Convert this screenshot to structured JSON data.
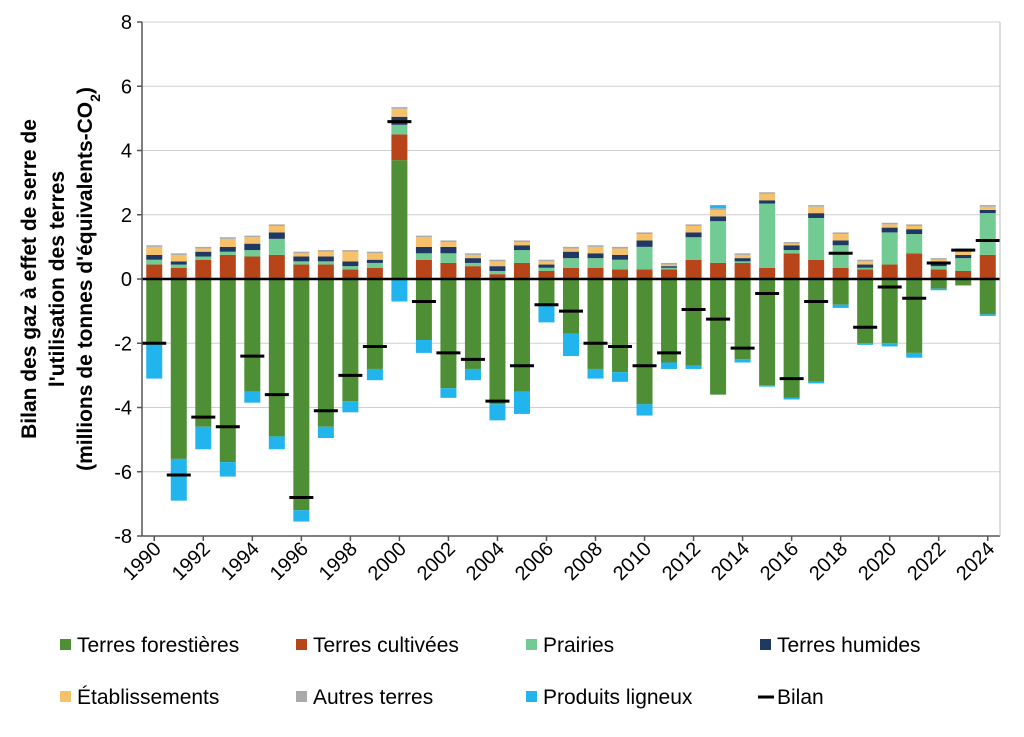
{
  "chart_data": {
    "type": "bar",
    "stacked": true,
    "ylabel_lines": [
      "Bilan des gaz à effet de serre de",
      "l'utilisation des terres",
      "(millions de tonnes d'équivalents-CO",
      "2",
      ")"
    ],
    "ylim": [
      -8,
      8
    ],
    "yticks": [
      -8,
      -6,
      -4,
      -2,
      0,
      2,
      4,
      6,
      8
    ],
    "years": [
      1990,
      1991,
      1992,
      1993,
      1994,
      1995,
      1996,
      1997,
      1998,
      1999,
      2000,
      2001,
      2002,
      2003,
      2004,
      2005,
      2006,
      2007,
      2008,
      2009,
      2010,
      2011,
      2012,
      2013,
      2014,
      2015,
      2016,
      2017,
      2018,
      2019,
      2020,
      2021,
      2022,
      2023,
      2024
    ],
    "x_tick_labels": [
      "1990",
      "1992",
      "1994",
      "1996",
      "1998",
      "2000",
      "2002",
      "2004",
      "2006",
      "2008",
      "2010",
      "2012",
      "2014",
      "2016",
      "2018",
      "2020",
      "2022",
      "2024"
    ],
    "colors": {
      "forest": "#4e8f35",
      "crop": "#b8451a",
      "grass": "#71cb92",
      "wet": "#1f3864",
      "settle": "#f7c16a",
      "other": "#aaaaaa",
      "wood": "#22b4ec",
      "bilan": "#000000",
      "grid": "#d0d0d0"
    },
    "series": [
      {
        "key": "forest",
        "name": "Terres forestières",
        "values": [
          -2.0,
          -5.6,
          -4.6,
          -5.7,
          -3.5,
          -4.9,
          -7.2,
          -4.6,
          -3.8,
          -2.8,
          3.7,
          -1.9,
          -3.4,
          -2.8,
          -3.9,
          -3.5,
          -0.8,
          -1.7,
          -2.8,
          -2.9,
          -3.9,
          -2.6,
          -2.7,
          -3.6,
          -2.5,
          -3.3,
          -3.7,
          -3.2,
          -0.8,
          -2.0,
          -2.0,
          -2.3,
          -0.3,
          -0.2,
          -1.1
        ]
      },
      {
        "key": "crop",
        "name": "Terres cultivées",
        "values": [
          0.45,
          0.35,
          0.6,
          0.75,
          0.7,
          0.75,
          0.45,
          0.45,
          0.3,
          0.35,
          0.8,
          0.6,
          0.5,
          0.4,
          0.15,
          0.5,
          0.25,
          0.35,
          0.35,
          0.3,
          0.3,
          0.3,
          0.6,
          0.5,
          0.5,
          0.35,
          0.8,
          0.6,
          0.35,
          0.3,
          0.45,
          0.8,
          0.3,
          0.25,
          0.75
        ]
      },
      {
        "key": "grass",
        "name": "Prairies",
        "values": [
          0.15,
          0.1,
          0.1,
          0.1,
          0.2,
          0.5,
          0.1,
          0.1,
          0.1,
          0.15,
          0.3,
          0.2,
          0.3,
          0.1,
          0.1,
          0.4,
          0.1,
          0.3,
          0.3,
          0.3,
          0.7,
          0.05,
          0.7,
          1.3,
          0.05,
          2.0,
          0.1,
          1.3,
          0.7,
          0.05,
          1.0,
          0.6,
          0.1,
          0.4,
          1.3
        ]
      },
      {
        "key": "wet",
        "name": "Terres humides",
        "values": [
          0.15,
          0.1,
          0.15,
          0.15,
          0.2,
          0.2,
          0.15,
          0.15,
          0.15,
          0.1,
          0.25,
          0.2,
          0.2,
          0.15,
          0.15,
          0.15,
          0.1,
          0.2,
          0.15,
          0.15,
          0.2,
          0.05,
          0.15,
          0.15,
          0.1,
          0.1,
          0.15,
          0.15,
          0.15,
          0.1,
          0.15,
          0.15,
          0.1,
          0.1,
          0.1
        ]
      },
      {
        "key": "settle",
        "name": "Établissements",
        "values": [
          0.25,
          0.2,
          0.1,
          0.25,
          0.2,
          0.2,
          0.1,
          0.15,
          0.3,
          0.2,
          0.25,
          0.3,
          0.15,
          0.1,
          0.15,
          0.1,
          0.1,
          0.1,
          0.2,
          0.2,
          0.2,
          0.05,
          0.2,
          0.2,
          0.1,
          0.2,
          0.05,
          0.2,
          0.2,
          0.1,
          0.1,
          0.1,
          0.1,
          0.1,
          0.1
        ]
      },
      {
        "key": "other",
        "name": "Autres terres",
        "values": [
          0.05,
          0.05,
          0.05,
          0.05,
          0.05,
          0.05,
          0.05,
          0.05,
          0.05,
          0.05,
          0.05,
          0.05,
          0.05,
          0.05,
          0.05,
          0.05,
          0.05,
          0.05,
          0.05,
          0.05,
          0.05,
          0.05,
          0.05,
          0.05,
          0.05,
          0.05,
          0.05,
          0.05,
          0.05,
          0.05,
          0.05,
          0.05,
          0.05,
          0.05,
          0.05
        ]
      },
      {
        "key": "wood",
        "name": "Produits ligneux",
        "values": [
          -1.1,
          -1.3,
          -0.7,
          -0.45,
          -0.35,
          -0.4,
          -0.35,
          -0.35,
          -0.35,
          -0.35,
          -0.7,
          -0.4,
          -0.3,
          -0.35,
          -0.5,
          -0.7,
          -0.55,
          -0.7,
          -0.3,
          -0.3,
          -0.35,
          -0.2,
          -0.1,
          0.1,
          -0.1,
          -0.05,
          -0.05,
          -0.05,
          -0.1,
          -0.05,
          -0.1,
          -0.15,
          -0.05,
          0.05,
          -0.05
        ]
      }
    ],
    "bilan": {
      "name": "Bilan",
      "values": [
        -2.0,
        -6.1,
        -4.3,
        -4.6,
        -2.4,
        -3.6,
        -6.8,
        -4.1,
        -3.0,
        -2.1,
        4.9,
        -0.7,
        -2.3,
        -2.5,
        -3.8,
        -2.7,
        -0.8,
        -1.0,
        -2.0,
        -2.1,
        -2.7,
        -2.3,
        -0.95,
        -1.25,
        -2.15,
        -0.45,
        -3.1,
        -0.7,
        0.8,
        -1.5,
        -0.25,
        -0.6,
        0.5,
        0.9,
        1.2
      ]
    },
    "legend_order": [
      "forest",
      "crop",
      "grass",
      "wet",
      "settle",
      "other",
      "wood",
      "bilan"
    ],
    "legend_labels": {
      "forest": "Terres forestières",
      "crop": "Terres cultivées",
      "grass": "Prairies",
      "wet": "Terres humides",
      "settle": "Établissements",
      "other": "Autres terres",
      "wood": "Produits ligneux",
      "bilan": "Bilan"
    }
  }
}
